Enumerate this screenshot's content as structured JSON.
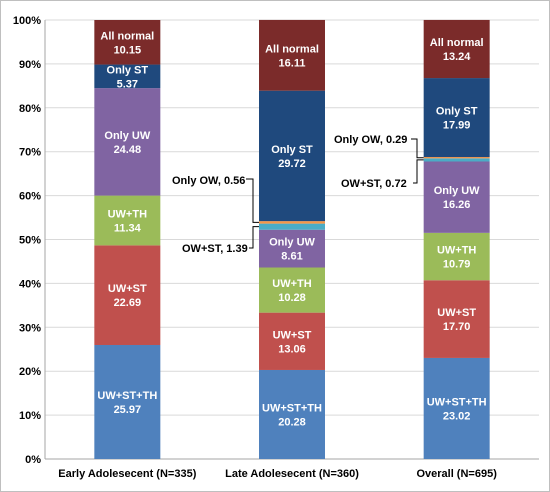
{
  "chart_data": {
    "type": "bar",
    "stacked": true,
    "normalized_percent": true,
    "title": "",
    "xlabel": "",
    "ylabel": "",
    "ylim": [
      0,
      100
    ],
    "yticks": [
      "0%",
      "10%",
      "20%",
      "30%",
      "40%",
      "50%",
      "60%",
      "70%",
      "80%",
      "90%",
      "100%"
    ],
    "grid": true,
    "legend": "none",
    "categories": [
      "Early Adolesecent (N=335)",
      "Late Adolesecent (N=360)",
      "Overall (N=695)"
    ],
    "series": [
      {
        "name": "UW+ST+TH",
        "color": "#4f81bd",
        "values": [
          25.97,
          20.28,
          23.02
        ],
        "labels": [
          "25.97",
          "20.28",
          "23.02"
        ]
      },
      {
        "name": "UW+ST",
        "color": "#c0504d",
        "values": [
          22.69,
          13.06,
          17.7
        ],
        "labels": [
          "22.69",
          "13.06",
          "17.70"
        ]
      },
      {
        "name": "UW+TH",
        "color": "#9bbb59",
        "values": [
          11.34,
          10.28,
          10.79
        ],
        "labels": [
          "11.34",
          "10.28",
          "10.79"
        ]
      },
      {
        "name": "Only UW",
        "color": "#8064a2",
        "values": [
          24.48,
          8.61,
          16.26
        ],
        "labels": [
          "24.48",
          "8.61",
          "16.26"
        ]
      },
      {
        "name": "OW+ST",
        "color": "#4bacc6",
        "values": [
          0,
          1.39,
          0.72
        ],
        "labels": [
          "",
          "OW+ST, 1.39",
          "OW+ST, 0.72"
        ]
      },
      {
        "name": "Only OW",
        "color": "#f79646",
        "values": [
          0,
          0.56,
          0.29
        ],
        "labels": [
          "",
          "Only OW, 0.56",
          "Only OW, 0.29"
        ]
      },
      {
        "name": "Only ST",
        "color": "#1f497d",
        "values": [
          5.37,
          29.72,
          17.99
        ],
        "labels": [
          "5.37",
          "29.72",
          "17.99"
        ]
      },
      {
        "name": "All normal",
        "color": "#7b2b2a",
        "values": [
          10.15,
          16.11,
          13.24
        ],
        "labels": [
          "10.15",
          "16.11",
          "13.24"
        ]
      }
    ]
  }
}
